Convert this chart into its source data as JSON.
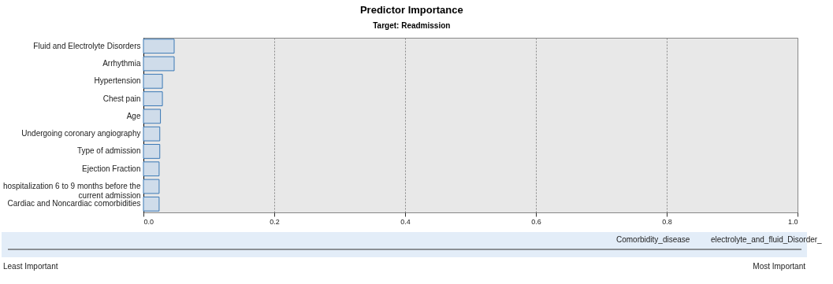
{
  "chart_data": {
    "type": "bar",
    "title": "Predictor Importance",
    "subtitle": "Target: Readmission",
    "orientation": "horizontal",
    "categories": [
      "Fluid and Electrolyte Disorders",
      "Arrhythmia",
      "Hypertension",
      "Chest pain",
      "Age",
      "Undergoing coronary angiography",
      "Type of admission",
      "Ejection Fraction",
      "hospitalization 6 to 9 months before the current admission",
      "Cardiac and Noncardiac comorbidities"
    ],
    "values": [
      0.047,
      0.047,
      0.029,
      0.029,
      0.026,
      0.025,
      0.025,
      0.024,
      0.024,
      0.024
    ],
    "color": "#cfdcea",
    "xlim": [
      0,
      1
    ],
    "xticks": [
      {
        "value": 0,
        "label": "0.0"
      },
      {
        "value": 0.2,
        "label": "0.2"
      },
      {
        "value": 0.4,
        "label": "0.4"
      },
      {
        "value": 0.6,
        "label": "0.6"
      },
      {
        "value": 0.8,
        "label": "0.8"
      },
      {
        "value": 1,
        "label": "1.0"
      }
    ],
    "grid": "x",
    "annotations": [
      "Comorbidity_disease",
      "electrolyte_and_fluid_Disorder_",
      "Least Important",
      "Most Important"
    ]
  }
}
